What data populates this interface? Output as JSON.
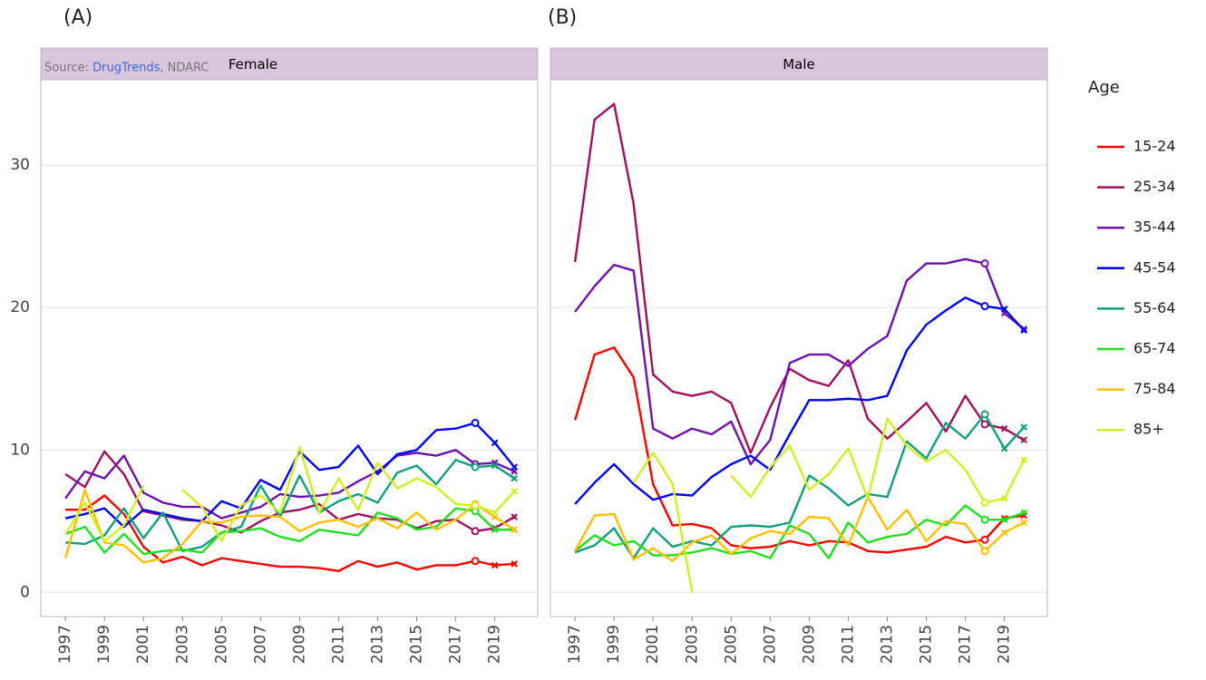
{
  "chart_data": [
    {
      "type": "line",
      "panel_label": "(A)",
      "title": "Female",
      "source": {
        "prefix": "Source: ",
        "link": "DrugTrends",
        "suffix": ", NDARC"
      },
      "x": [
        1997,
        1998,
        1999,
        2000,
        2001,
        2002,
        2003,
        2004,
        2005,
        2006,
        2007,
        2008,
        2009,
        2010,
        2011,
        2012,
        2013,
        2014,
        2015,
        2016,
        2017,
        2018,
        2019,
        2020
      ],
      "xlim": [
        1995.74,
        2021.2
      ],
      "xticks": [
        1997,
        1999,
        2001,
        2003,
        2005,
        2007,
        2009,
        2011,
        2013,
        2015,
        2017,
        2019
      ],
      "ylim": [
        -1.7,
        36
      ],
      "yticks": [
        0,
        10,
        20,
        30
      ],
      "grid": true,
      "circle_x": 2018,
      "cross_x": [
        2019,
        2020
      ],
      "series": [
        {
          "name": "15-24",
          "color": "#ff0000",
          "values": [
            5.8,
            5.8,
            6.8,
            5.5,
            3.2,
            2.1,
            2.5,
            1.9,
            2.4,
            2.2,
            2.0,
            1.8,
            1.8,
            1.7,
            1.5,
            2.2,
            1.8,
            2.1,
            1.6,
            1.9,
            1.9,
            2.2,
            1.9,
            2.0
          ]
        },
        {
          "name": "25-34",
          "color": "#a0105e",
          "values": [
            8.3,
            7.4,
            9.9,
            8.3,
            5.7,
            5.4,
            5.1,
            5.0,
            4.7,
            4.2,
            5.0,
            5.6,
            5.8,
            6.2,
            5.1,
            5.5,
            5.2,
            5.1,
            4.5,
            5.0,
            5.1,
            4.3,
            4.5,
            5.3
          ]
        },
        {
          "name": "35-44",
          "color": "#7010b0",
          "values": [
            6.6,
            8.5,
            8.0,
            9.6,
            7.0,
            6.3,
            6.0,
            6.0,
            5.2,
            5.6,
            6.0,
            6.9,
            6.7,
            6.8,
            7.0,
            7.8,
            8.5,
            9.6,
            9.8,
            9.6,
            10.0,
            9.0,
            9.1,
            8.5
          ]
        },
        {
          "name": "45-54",
          "color": "#0000ff",
          "values": [
            5.2,
            5.5,
            5.9,
            4.6,
            5.8,
            5.5,
            5.2,
            5.0,
            6.4,
            5.9,
            7.9,
            7.2,
            9.9,
            8.6,
            8.8,
            10.3,
            8.3,
            9.7,
            10.0,
            11.4,
            11.5,
            11.9,
            10.5,
            8.8
          ]
        },
        {
          "name": "55-64",
          "color": "#10a07c",
          "values": [
            3.5,
            3.4,
            4.0,
            5.9,
            3.8,
            5.6,
            2.9,
            3.2,
            4.2,
            4.6,
            7.5,
            5.3,
            8.2,
            5.6,
            6.4,
            6.9,
            6.3,
            8.4,
            8.9,
            7.6,
            9.3,
            8.8,
            8.9,
            8.0
          ]
        },
        {
          "name": "65-74",
          "color": "#20e020",
          "values": [
            4.1,
            4.6,
            2.8,
            4.1,
            2.7,
            2.9,
            3.0,
            2.8,
            4.2,
            4.3,
            4.5,
            3.9,
            3.6,
            4.4,
            4.2,
            4.0,
            5.6,
            5.2,
            4.4,
            4.6,
            5.9,
            5.7,
            4.4,
            4.4
          ]
        },
        {
          "name": "75-84",
          "color": "#ffc000",
          "values": [
            2.4,
            7.2,
            3.5,
            3.3,
            2.1,
            2.4,
            3.4,
            5.0,
            4.9,
            5.3,
            5.4,
            5.3,
            4.3,
            4.9,
            5.1,
            4.6,
            5.2,
            4.5,
            5.6,
            4.4,
            5.1,
            6.2,
            5.3,
            4.4
          ]
        },
        {
          "name": "85+",
          "color": "#d0f020",
          "values": [
            4.1,
            6.3,
            3.6,
            4.7,
            7.5,
            null,
            7.2,
            6.0,
            3.6,
            6.1,
            6.8,
            5.6,
            10.2,
            5.6,
            8.0,
            5.8,
            9.1,
            7.3,
            8.0,
            7.4,
            6.2,
            6.1,
            5.6,
            7.1
          ]
        }
      ]
    },
    {
      "type": "line",
      "panel_label": "(B)",
      "title": "Male",
      "x": [
        1997,
        1998,
        1999,
        2000,
        2001,
        2002,
        2003,
        2004,
        2005,
        2006,
        2007,
        2008,
        2009,
        2010,
        2011,
        2012,
        2013,
        2014,
        2015,
        2016,
        2017,
        2018,
        2019,
        2020
      ],
      "xlim": [
        1995.74,
        2021.2
      ],
      "xticks": [
        1997,
        1999,
        2001,
        2003,
        2005,
        2007,
        2009,
        2011,
        2013,
        2015,
        2017,
        2019
      ],
      "ylim": [
        -1.7,
        36
      ],
      "grid": true,
      "circle_x": 2018,
      "cross_x": [
        2019,
        2020
      ],
      "series": [
        {
          "name": "15-24",
          "color": "#ff0000",
          "values": [
            12.1,
            16.7,
            17.2,
            15.1,
            7.6,
            4.7,
            4.8,
            4.5,
            3.3,
            3.1,
            3.2,
            3.6,
            3.3,
            3.6,
            3.5,
            2.9,
            2.8,
            3.0,
            3.2,
            3.9,
            3.5,
            3.7,
            5.2,
            5.4
          ]
        },
        {
          "name": "25-34",
          "color": "#a0105e",
          "values": [
            23.2,
            33.2,
            34.3,
            27.3,
            15.3,
            14.1,
            13.8,
            14.1,
            13.3,
            9.8,
            13.0,
            15.7,
            14.9,
            14.5,
            16.3,
            12.2,
            10.8,
            12.0,
            13.3,
            11.3,
            13.8,
            11.8,
            11.5,
            10.7
          ]
        },
        {
          "name": "35-44",
          "color": "#7010b0",
          "values": [
            19.7,
            21.5,
            23.0,
            22.6,
            11.5,
            10.8,
            11.5,
            11.1,
            12.0,
            9.0,
            10.7,
            16.1,
            16.7,
            16.7,
            15.9,
            17.1,
            18.0,
            21.9,
            23.1,
            23.1,
            23.4,
            23.1,
            19.6,
            18.5
          ]
        },
        {
          "name": "45-54",
          "color": "#0000ff",
          "values": [
            6.2,
            7.7,
            9.0,
            7.6,
            6.5,
            6.9,
            6.8,
            8.1,
            9.0,
            9.6,
            8.6,
            11.1,
            13.5,
            13.5,
            13.6,
            13.5,
            13.8,
            17.0,
            18.8,
            19.8,
            20.7,
            20.1,
            19.9,
            18.4
          ]
        },
        {
          "name": "55-64",
          "color": "#10a07c",
          "values": [
            2.8,
            3.3,
            4.5,
            2.4,
            4.5,
            3.2,
            3.6,
            3.3,
            4.6,
            4.7,
            4.6,
            4.9,
            8.2,
            7.3,
            6.1,
            6.9,
            6.7,
            10.6,
            9.4,
            11.9,
            10.8,
            12.5,
            10.1,
            11.6
          ]
        },
        {
          "name": "65-74",
          "color": "#20e020",
          "values": [
            2.9,
            4.0,
            3.3,
            3.6,
            2.6,
            2.6,
            2.8,
            3.1,
            2.7,
            2.9,
            2.4,
            4.7,
            4.1,
            2.4,
            4.9,
            3.5,
            3.9,
            4.1,
            5.1,
            4.7,
            6.1,
            5.1,
            5.1,
            5.6
          ]
        },
        {
          "name": "75-84",
          "color": "#ffc000",
          "values": [
            2.9,
            5.4,
            5.5,
            2.3,
            3.1,
            2.2,
            3.5,
            4.0,
            2.7,
            3.8,
            4.3,
            4.1,
            5.3,
            5.2,
            3.3,
            6.7,
            4.4,
            5.8,
            3.6,
            5.0,
            4.8,
            2.9,
            4.2,
            4.9
          ]
        },
        {
          "name": "85+",
          "color": "#d0f020",
          "values": [
            null,
            null,
            null,
            7.7,
            9.8,
            7.6,
            0,
            null,
            8.2,
            6.7,
            8.8,
            10.3,
            7.2,
            8.3,
            10.1,
            6.6,
            12.2,
            10.3,
            9.2,
            10.0,
            8.6,
            6.3,
            6.6,
            9.3
          ]
        }
      ]
    }
  ],
  "legend": {
    "title": "Age"
  }
}
